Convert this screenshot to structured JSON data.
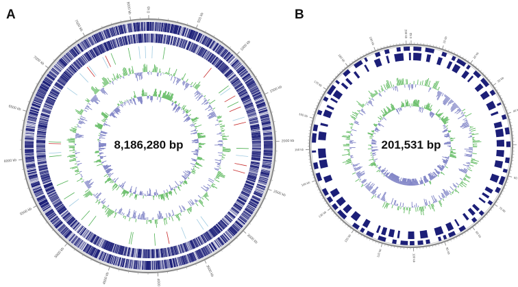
{
  "panels": [
    {
      "letter": "A",
      "genome_size_label": "8,186,280 bp",
      "genome_length_bp": 8186280,
      "major_tick_interval_kb": 500,
      "minor_tick_interval_kb": 100,
      "major_tick_labels": [
        "0 kb",
        "500 kb",
        "1000 kb",
        "1500 kb",
        "2000 kb",
        "2500 kb",
        "3000 kb",
        "3500 kb",
        "4000 kb",
        "4500 kb",
        "5000 kb",
        "5500 kb",
        "6000 kb",
        "6500 kb",
        "7000 kb",
        "7500 kb",
        "8000 kb"
      ],
      "tracks": [
        "forward-strand CDS",
        "reverse-strand CDS",
        "tRNA/rRNA",
        "GC content",
        "GC skew"
      ]
    },
    {
      "letter": "B",
      "genome_size_label": "201,531 bp",
      "genome_length_bp": 201531,
      "major_tick_interval_kb": 10,
      "minor_tick_interval_kb": 1,
      "major_tick_labels": [
        "0 kb",
        "10 kb",
        "20 kb",
        "30 kb",
        "40 kb",
        "50 kb",
        "60 kb",
        "70 kb",
        "80 kb",
        "90 kb",
        "100 kb",
        "110 kb",
        "120 kb",
        "130 kb",
        "140 kb",
        "150 kb",
        "160 kb",
        "170 kb",
        "180 kb",
        "190 kb",
        "200 kb"
      ],
      "tracks": [
        "forward-strand CDS",
        "reverse-strand CDS",
        "GC content",
        "GC skew"
      ]
    }
  ],
  "colors": {
    "cds": "#1c1f78",
    "rna": "#c62828",
    "rna_alt": "#4caf50",
    "gc_positive": "#5cb85c",
    "gc_negative": "#7b7fc4",
    "backbone": "#8a8a8a",
    "tick_text": "#555555"
  }
}
